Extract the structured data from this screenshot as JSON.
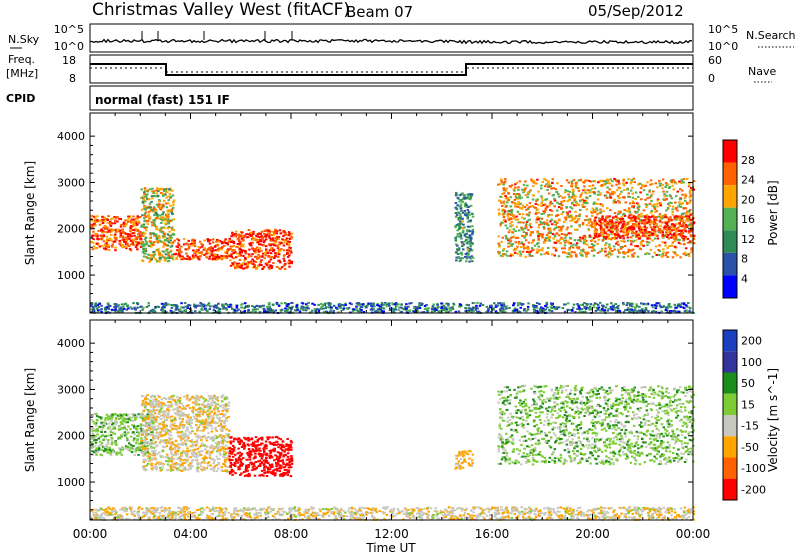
{
  "header": {
    "title": "Christmas Valley West (fitACF)",
    "beam": "Beam 07",
    "date": "05/Sep/2012"
  },
  "status_panels": {
    "nsky": {
      "label": "N.Sky",
      "ticks_left": [
        "10^5",
        "10^0"
      ],
      "ticks_right": [
        "10^5",
        "10^0"
      ],
      "right_label": "N.Search"
    },
    "freq": {
      "label_line1": "Freq.",
      "label_line2": "[MHz]",
      "ticks_left": [
        "18",
        "8"
      ],
      "ticks_right": [
        "60",
        "0"
      ],
      "right_label": "Nave"
    },
    "cpid": {
      "label": "CPID",
      "value": "normal (fast) 151 IF"
    }
  },
  "colors": {
    "power_scale": [
      "#0000ff",
      "#2a52a8",
      "#2e8b57",
      "#52b152",
      "#ffa500",
      "#ff6000",
      "#ff0000"
    ],
    "velocity_scale": [
      "#1a3fbf",
      "#33339e",
      "#1b8c1b",
      "#7ccd33",
      "#c8c8c0",
      "#ffa500",
      "#ff6000",
      "#ff0000"
    ]
  },
  "chart_data": [
    {
      "type": "heatmap",
      "title": "",
      "xlabel": "",
      "ylabel": "Slant Range [km]",
      "x_ticks": [
        "00:00",
        "04:00",
        "08:00",
        "12:00",
        "16:00",
        "20:00",
        "00:00"
      ],
      "xlim_hours": [
        0,
        24
      ],
      "y_ticks": [
        1000,
        2000,
        3000,
        4000
      ],
      "ylim": [
        180,
        4500
      ],
      "colorbar": {
        "label": "Power [dB]",
        "ticks": [
          4,
          8,
          12,
          16,
          20,
          24,
          28
        ],
        "range": [
          0,
          30
        ]
      },
      "echo_regions": [
        {
          "t0": 0.0,
          "t1": 2.0,
          "r0": 1550,
          "r1": 2300,
          "level": 0.85
        },
        {
          "t0": 2.0,
          "t1": 3.3,
          "r0": 1300,
          "r1": 2900,
          "level": 0.6
        },
        {
          "t0": 3.3,
          "t1": 5.5,
          "r0": 1350,
          "r1": 1800,
          "level": 0.9
        },
        {
          "t0": 5.5,
          "t1": 8.0,
          "r0": 1150,
          "r1": 2000,
          "level": 0.92
        },
        {
          "t0": 14.5,
          "t1": 15.2,
          "r0": 1300,
          "r1": 2800,
          "level": 0.35
        },
        {
          "t0": 16.2,
          "t1": 24.0,
          "r0": 1400,
          "r1": 3100,
          "level": 0.7
        },
        {
          "t0": 20.0,
          "t1": 24.0,
          "r0": 1800,
          "r1": 2300,
          "level": 0.9
        },
        {
          "t0": 0.0,
          "t1": 24.0,
          "r0": 200,
          "r1": 420,
          "level": 0.25
        }
      ]
    },
    {
      "type": "heatmap",
      "title": "",
      "xlabel": "Time UT",
      "ylabel": "Slant Range [km]",
      "x_ticks": [
        "00:00",
        "04:00",
        "08:00",
        "12:00",
        "16:00",
        "20:00",
        "00:00"
      ],
      "xlim_hours": [
        0,
        24
      ],
      "y_ticks": [
        1000,
        2000,
        3000,
        4000
      ],
      "ylim": [
        180,
        4500
      ],
      "colorbar": {
        "label": "Velocity [m s^-1]",
        "ticks": [
          200,
          100,
          50,
          15,
          -15,
          -50,
          -100,
          -200
        ],
        "range": [
          -250,
          250
        ]
      },
      "echo_regions": [
        {
          "t0": 0.0,
          "t1": 2.5,
          "r0": 1600,
          "r1": 2500,
          "velocity": 0
        },
        {
          "t0": 2.0,
          "t1": 5.5,
          "r0": 1250,
          "r1": 2900,
          "velocity": -40
        },
        {
          "t0": 5.5,
          "t1": 8.0,
          "r0": 1150,
          "r1": 2000,
          "velocity": -230
        },
        {
          "t0": 14.5,
          "t1": 15.2,
          "r0": 1300,
          "r1": 1700,
          "velocity": -60
        },
        {
          "t0": 16.2,
          "t1": 24.0,
          "r0": 1400,
          "r1": 3100,
          "velocity": 0
        },
        {
          "t0": 0.0,
          "t1": 24.0,
          "r0": 200,
          "r1": 480,
          "velocity": -40
        }
      ]
    }
  ]
}
